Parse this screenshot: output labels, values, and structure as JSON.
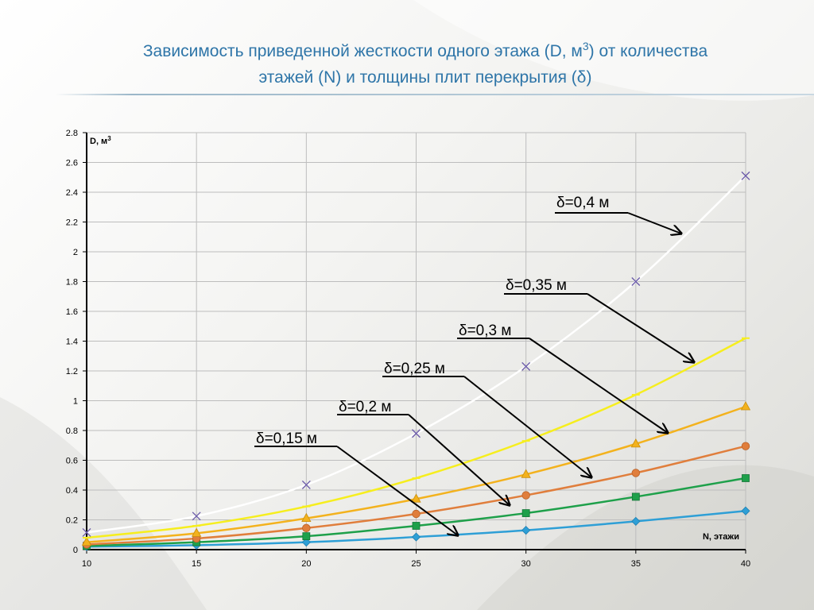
{
  "title": {
    "line1_pre": "Зависимость приведенной жесткости одного этажа (D, м",
    "line1_sup": "3",
    "line1_post": ") от количества",
    "line2": "этажей (N) и толщины плит перекрытия (δ)"
  },
  "chart_data": {
    "type": "line",
    "ylabel": "D, м",
    "ylabel_sup": "3",
    "xlabel": "N, этажи",
    "x": [
      10,
      15,
      20,
      25,
      30,
      35,
      40
    ],
    "xlim": [
      10,
      40
    ],
    "ylim": [
      0,
      2.8
    ],
    "x_ticks": [
      "10",
      "15",
      "20",
      "25",
      "30",
      "35",
      "40"
    ],
    "y_ticks": [
      "0",
      "0.2",
      "0.4",
      "0.6",
      "0.8",
      "1",
      "1.2",
      "1.4",
      "1.6",
      "1.8",
      "2",
      "2.2",
      "2.4",
      "2.6",
      "2.8"
    ],
    "grid": true,
    "series": [
      {
        "name": "δ=0,15 м",
        "color": "#2e9fd6",
        "marker": "diamond",
        "values": [
          0.02,
          0.03,
          0.05,
          0.085,
          0.13,
          0.19,
          0.26
        ]
      },
      {
        "name": "δ=0,2 м",
        "color": "#1ea04a",
        "marker": "square",
        "values": [
          0.025,
          0.05,
          0.09,
          0.16,
          0.245,
          0.355,
          0.48
        ]
      },
      {
        "name": "δ=0,25 м",
        "color": "#e07e3c",
        "marker": "circle",
        "values": [
          0.035,
          0.075,
          0.145,
          0.24,
          0.365,
          0.515,
          0.695
        ]
      },
      {
        "name": "δ=0,3 м",
        "color": "#f3b21d",
        "marker": "triangle",
        "values": [
          0.05,
          0.11,
          0.21,
          0.34,
          0.505,
          0.71,
          0.96
        ]
      },
      {
        "name": "δ=0,35 м",
        "color": "#f6ee1e",
        "marker": "dash",
        "values": [
          0.08,
          0.16,
          0.29,
          0.48,
          0.73,
          1.04,
          1.42
        ]
      },
      {
        "name": "δ=0,4 м",
        "color": "#ffffff",
        "marker": "x",
        "values": [
          0.115,
          0.225,
          0.435,
          0.78,
          1.23,
          1.8,
          2.51
        ]
      }
    ],
    "annotations": [
      {
        "text": "δ=0,4 м",
        "points_to_series": 5
      },
      {
        "text": "δ=0,35 м",
        "points_to_series": 4
      },
      {
        "text": "δ=0,3 м",
        "points_to_series": 3
      },
      {
        "text": "δ=0,25 м",
        "points_to_series": 2
      },
      {
        "text": "δ=0,2 м",
        "points_to_series": 1
      },
      {
        "text": "δ=0,15 м",
        "points_to_series": 0
      }
    ]
  }
}
